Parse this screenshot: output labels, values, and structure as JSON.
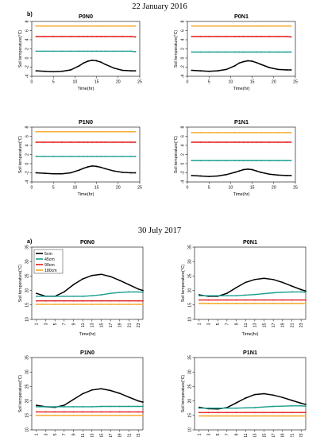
{
  "figure": {
    "date_top": "22 January 2016",
    "date_bottom": "30 July 2017",
    "label_b": "b)",
    "label_a": "a)"
  },
  "chart_data": [
    {
      "type": "line",
      "group": "top",
      "title": "P0N0",
      "xlabel": "Time(hr)",
      "ylabel": "Soil temperature(°C)",
      "xlim": [
        0,
        25
      ],
      "ylim": [
        -4,
        8
      ],
      "xticks": [
        0,
        5,
        10,
        15,
        20,
        25
      ],
      "yticks": [
        -4,
        -2,
        0,
        2,
        4,
        6,
        8
      ],
      "x": [
        1,
        3,
        5,
        7,
        9,
        11,
        12,
        13,
        14,
        15,
        16,
        17,
        19,
        21,
        23,
        24
      ],
      "series": [
        {
          "color": "#f5a623",
          "values": [
            7.0,
            7.0,
            7.0,
            7.0,
            7.0,
            7.0,
            7.0,
            7.0,
            7.0,
            7.0,
            7.0,
            7.0,
            7.0,
            7.0,
            7.0,
            7.0
          ]
        },
        {
          "color": "#e31a1c",
          "values": [
            4.7,
            4.7,
            4.7,
            4.7,
            4.7,
            4.7,
            4.7,
            4.7,
            4.7,
            4.7,
            4.7,
            4.7,
            4.7,
            4.7,
            4.7,
            4.6
          ]
        },
        {
          "color": "#1a9e8f",
          "values": [
            1.5,
            1.5,
            1.5,
            1.5,
            1.5,
            1.5,
            1.5,
            1.5,
            1.5,
            1.5,
            1.5,
            1.5,
            1.5,
            1.5,
            1.5,
            1.4
          ]
        },
        {
          "color": "#000000",
          "values": [
            -2.8,
            -2.9,
            -3.0,
            -2.9,
            -2.6,
            -1.7,
            -1.1,
            -0.7,
            -0.5,
            -0.6,
            -0.9,
            -1.4,
            -2.2,
            -2.7,
            -2.8,
            -2.8
          ]
        }
      ]
    },
    {
      "type": "line",
      "group": "top",
      "title": "P0N1",
      "xlabel": "Time(hr)",
      "ylabel": "Soil temperature(°C)",
      "xlim": [
        0,
        25
      ],
      "ylim": [
        -4,
        8
      ],
      "xticks": [
        0,
        5,
        10,
        15,
        20,
        25
      ],
      "yticks": [
        -4,
        -2,
        0,
        2,
        4,
        6,
        8
      ],
      "x": [
        1,
        3,
        5,
        7,
        9,
        11,
        12,
        13,
        14,
        15,
        16,
        17,
        19,
        21,
        23,
        24
      ],
      "series": [
        {
          "color": "#f5a623",
          "values": [
            7.0,
            7.0,
            7.0,
            7.0,
            7.0,
            7.0,
            7.0,
            7.0,
            7.0,
            7.0,
            7.0,
            7.0,
            7.0,
            7.0,
            7.0,
            7.0
          ]
        },
        {
          "color": "#e31a1c",
          "values": [
            4.7,
            4.7,
            4.7,
            4.7,
            4.7,
            4.7,
            4.7,
            4.7,
            4.7,
            4.7,
            4.7,
            4.7,
            4.7,
            4.7,
            4.7,
            4.6
          ]
        },
        {
          "color": "#1a9e8f",
          "values": [
            1.3,
            1.3,
            1.3,
            1.3,
            1.3,
            1.3,
            1.3,
            1.3,
            1.3,
            1.3,
            1.3,
            1.3,
            1.3,
            1.3,
            1.3,
            1.3
          ]
        },
        {
          "color": "#000000",
          "values": [
            -2.7,
            -2.8,
            -2.9,
            -2.8,
            -2.5,
            -1.7,
            -1.1,
            -0.8,
            -0.6,
            -0.7,
            -1.0,
            -1.4,
            -2.1,
            -2.5,
            -2.6,
            -2.6
          ]
        }
      ]
    },
    {
      "type": "line",
      "group": "top",
      "title": "P1N0",
      "xlabel": "Time(hr)",
      "ylabel": "Soil temperature(°C)",
      "xlim": [
        0,
        25
      ],
      "ylim": [
        -4,
        8
      ],
      "xticks": [
        0,
        5,
        10,
        15,
        20,
        25
      ],
      "yticks": [
        -4,
        -2,
        0,
        2,
        4,
        6,
        8
      ],
      "x": [
        1,
        3,
        5,
        7,
        9,
        11,
        12,
        13,
        14,
        15,
        16,
        17,
        19,
        21,
        23,
        24
      ],
      "series": [
        {
          "color": "#f5a623",
          "values": [
            7.0,
            7.0,
            7.0,
            7.0,
            7.0,
            7.0,
            7.0,
            7.0,
            7.0,
            7.0,
            7.0,
            7.0,
            7.0,
            7.0,
            7.0,
            7.0
          ]
        },
        {
          "color": "#e31a1c",
          "values": [
            4.7,
            4.7,
            4.7,
            4.7,
            4.7,
            4.7,
            4.7,
            4.7,
            4.7,
            4.7,
            4.7,
            4.7,
            4.7,
            4.7,
            4.7,
            4.7
          ]
        },
        {
          "color": "#1a9e8f",
          "values": [
            1.6,
            1.6,
            1.6,
            1.6,
            1.6,
            1.6,
            1.6,
            1.6,
            1.6,
            1.6,
            1.6,
            1.6,
            1.6,
            1.6,
            1.6,
            1.6
          ]
        },
        {
          "color": "#000000",
          "values": [
            -2.0,
            -2.1,
            -2.2,
            -2.2,
            -2.0,
            -1.4,
            -1.0,
            -0.7,
            -0.5,
            -0.6,
            -0.8,
            -1.1,
            -1.6,
            -1.9,
            -2.0,
            -2.0
          ]
        }
      ]
    },
    {
      "type": "line",
      "group": "top",
      "title": "P1N1",
      "xlabel": "Time(hr)",
      "ylabel": "Soil temperature(°C)",
      "xlim": [
        0,
        25
      ],
      "ylim": [
        -4,
        8
      ],
      "xticks": [
        0,
        5,
        10,
        15,
        20,
        25
      ],
      "yticks": [
        -4,
        -2,
        0,
        2,
        4,
        6,
        8
      ],
      "x": [
        1,
        3,
        5,
        7,
        9,
        11,
        12,
        13,
        14,
        15,
        16,
        17,
        19,
        21,
        23,
        24
      ],
      "series": [
        {
          "color": "#f5a623",
          "values": [
            6.8,
            6.8,
            6.8,
            6.8,
            6.8,
            6.8,
            6.8,
            6.8,
            6.8,
            6.8,
            6.8,
            6.8,
            6.8,
            6.8,
            6.8,
            6.8
          ]
        },
        {
          "color": "#e31a1c",
          "values": [
            4.7,
            4.7,
            4.7,
            4.7,
            4.7,
            4.7,
            4.7,
            4.7,
            4.7,
            4.7,
            4.7,
            4.7,
            4.7,
            4.7,
            4.7,
            4.7
          ]
        },
        {
          "color": "#1a9e8f",
          "values": [
            0.7,
            0.7,
            0.7,
            0.7,
            0.7,
            0.7,
            0.7,
            0.7,
            0.7,
            0.7,
            0.7,
            0.7,
            0.7,
            0.7,
            0.7,
            0.7
          ]
        },
        {
          "color": "#000000",
          "values": [
            -2.6,
            -2.7,
            -2.8,
            -2.7,
            -2.4,
            -1.9,
            -1.6,
            -1.3,
            -1.2,
            -1.3,
            -1.6,
            -1.9,
            -2.3,
            -2.5,
            -2.6,
            -2.6
          ]
        }
      ]
    },
    {
      "type": "line",
      "group": "bottom",
      "title": "P0N0",
      "xlabel": "Time(hr)",
      "ylabel": "Soil temperature(°C)",
      "xlim": [
        0,
        24
      ],
      "ylim": [
        10,
        35
      ],
      "xticks": [
        1,
        3,
        5,
        7,
        9,
        11,
        13,
        15,
        17,
        19,
        21,
        23
      ],
      "yticks": [
        10,
        15,
        20,
        25,
        30,
        35
      ],
      "legend": [
        "5cm",
        "45cm",
        "90cm",
        "180cm"
      ],
      "x": [
        1,
        3,
        5,
        7,
        9,
        11,
        13,
        15,
        17,
        19,
        21,
        23,
        24
      ],
      "series": [
        {
          "name": "5cm",
          "color": "#000000",
          "values": [
            19.0,
            18.0,
            18.0,
            19.5,
            22.0,
            24.0,
            25.2,
            25.6,
            24.8,
            23.5,
            22.0,
            20.5,
            20.0
          ]
        },
        {
          "name": "45cm",
          "color": "#1a9e8f",
          "values": [
            18.0,
            18.0,
            18.0,
            18.0,
            18.0,
            18.0,
            18.2,
            18.5,
            19.0,
            19.3,
            19.5,
            19.5,
            19.4
          ]
        },
        {
          "name": "90cm",
          "color": "#e31a1c",
          "values": [
            16.4,
            16.4,
            16.4,
            16.4,
            16.4,
            16.4,
            16.4,
            16.4,
            16.4,
            16.4,
            16.4,
            16.4,
            16.4
          ]
        },
        {
          "name": "180cm",
          "color": "#f5a623",
          "values": [
            15.2,
            15.2,
            15.2,
            15.2,
            15.2,
            15.2,
            15.2,
            15.2,
            15.2,
            15.2,
            15.2,
            15.2,
            15.2
          ]
        }
      ]
    },
    {
      "type": "line",
      "group": "bottom",
      "title": "P0N1",
      "xlabel": "Time(hr)",
      "ylabel": "Soil temperature(°C)",
      "xlim": [
        0,
        24
      ],
      "ylim": [
        10,
        35
      ],
      "xticks": [
        1,
        3,
        5,
        7,
        9,
        11,
        13,
        15,
        17,
        19,
        21,
        23
      ],
      "yticks": [
        10,
        15,
        20,
        25,
        30,
        35
      ],
      "x": [
        1,
        3,
        5,
        7,
        9,
        11,
        13,
        15,
        17,
        19,
        21,
        23,
        24
      ],
      "series": [
        {
          "color": "#000000",
          "values": [
            18.5,
            18.0,
            18.0,
            19.0,
            21.0,
            22.8,
            23.8,
            24.2,
            23.8,
            22.8,
            21.5,
            20.3,
            19.8
          ]
        },
        {
          "color": "#1a9e8f",
          "values": [
            18.2,
            18.2,
            18.2,
            18.2,
            18.2,
            18.4,
            18.6,
            18.9,
            19.2,
            19.4,
            19.5,
            19.5,
            19.4
          ]
        },
        {
          "color": "#e31a1c",
          "values": [
            16.7,
            16.7,
            16.7,
            16.7,
            16.7,
            16.7,
            16.7,
            16.7,
            16.7,
            16.7,
            16.7,
            16.7,
            16.7
          ]
        },
        {
          "color": "#f5a623",
          "values": [
            15.5,
            15.5,
            15.5,
            15.5,
            15.5,
            15.5,
            15.5,
            15.5,
            15.5,
            15.5,
            15.5,
            15.5,
            15.5
          ]
        }
      ]
    },
    {
      "type": "line",
      "group": "bottom",
      "title": "P1N0",
      "xlabel": "Time(hr)",
      "ylabel": "Soil temperature(°C)",
      "xlim": [
        0,
        24
      ],
      "ylim": [
        10,
        35
      ],
      "xticks": [
        1,
        3,
        5,
        7,
        9,
        11,
        13,
        15,
        17,
        19,
        21,
        23
      ],
      "yticks": [
        10,
        15,
        20,
        25,
        30,
        35
      ],
      "x": [
        1,
        3,
        5,
        7,
        9,
        11,
        13,
        15,
        17,
        19,
        21,
        23,
        24
      ],
      "series": [
        {
          "color": "#000000",
          "values": [
            18.5,
            18.0,
            17.8,
            18.5,
            20.5,
            22.5,
            23.8,
            24.2,
            23.6,
            22.6,
            21.3,
            20.0,
            19.6
          ]
        },
        {
          "color": "#1a9e8f",
          "values": [
            18.0,
            18.0,
            18.0,
            18.0,
            18.0,
            18.0,
            18.0,
            18.1,
            18.1,
            18.1,
            18.1,
            18.1,
            18.1
          ]
        },
        {
          "color": "#e31a1c",
          "values": [
            16.2,
            16.2,
            16.2,
            16.2,
            16.2,
            16.2,
            16.2,
            16.2,
            16.2,
            16.2,
            16.2,
            16.2,
            16.2
          ]
        },
        {
          "color": "#f5a623",
          "values": [
            15.0,
            15.0,
            15.0,
            15.0,
            15.0,
            15.0,
            15.0,
            15.0,
            15.0,
            15.0,
            15.0,
            15.0,
            15.0
          ]
        }
      ]
    },
    {
      "type": "line",
      "group": "bottom",
      "title": "P1N1",
      "xlabel": "Time(hr)",
      "ylabel": "Soil temperature(°C)",
      "xlim": [
        0,
        24
      ],
      "ylim": [
        10,
        35
      ],
      "xticks": [
        1,
        3,
        5,
        7,
        9,
        11,
        13,
        15,
        17,
        19,
        21,
        23
      ],
      "yticks": [
        10,
        15,
        20,
        25,
        30,
        35
      ],
      "x": [
        1,
        3,
        5,
        7,
        9,
        11,
        13,
        15,
        17,
        19,
        21,
        23,
        24
      ],
      "series": [
        {
          "color": "#000000",
          "values": [
            17.8,
            17.3,
            17.2,
            17.7,
            19.3,
            21.0,
            22.2,
            22.5,
            22.0,
            21.2,
            20.2,
            19.2,
            18.8
          ]
        },
        {
          "color": "#1a9e8f",
          "values": [
            17.5,
            17.5,
            17.5,
            17.5,
            17.5,
            17.6,
            17.7,
            17.9,
            18.1,
            18.2,
            18.3,
            18.3,
            18.2
          ]
        },
        {
          "color": "#e31a1c",
          "values": [
            16.0,
            16.0,
            16.0,
            16.0,
            16.0,
            16.0,
            16.0,
            16.0,
            16.0,
            16.0,
            16.0,
            16.0,
            16.0
          ]
        },
        {
          "color": "#f5a623",
          "values": [
            14.8,
            14.8,
            14.8,
            14.8,
            14.8,
            14.8,
            14.8,
            14.8,
            14.8,
            14.8,
            14.8,
            14.8,
            14.8
          ]
        }
      ]
    }
  ]
}
